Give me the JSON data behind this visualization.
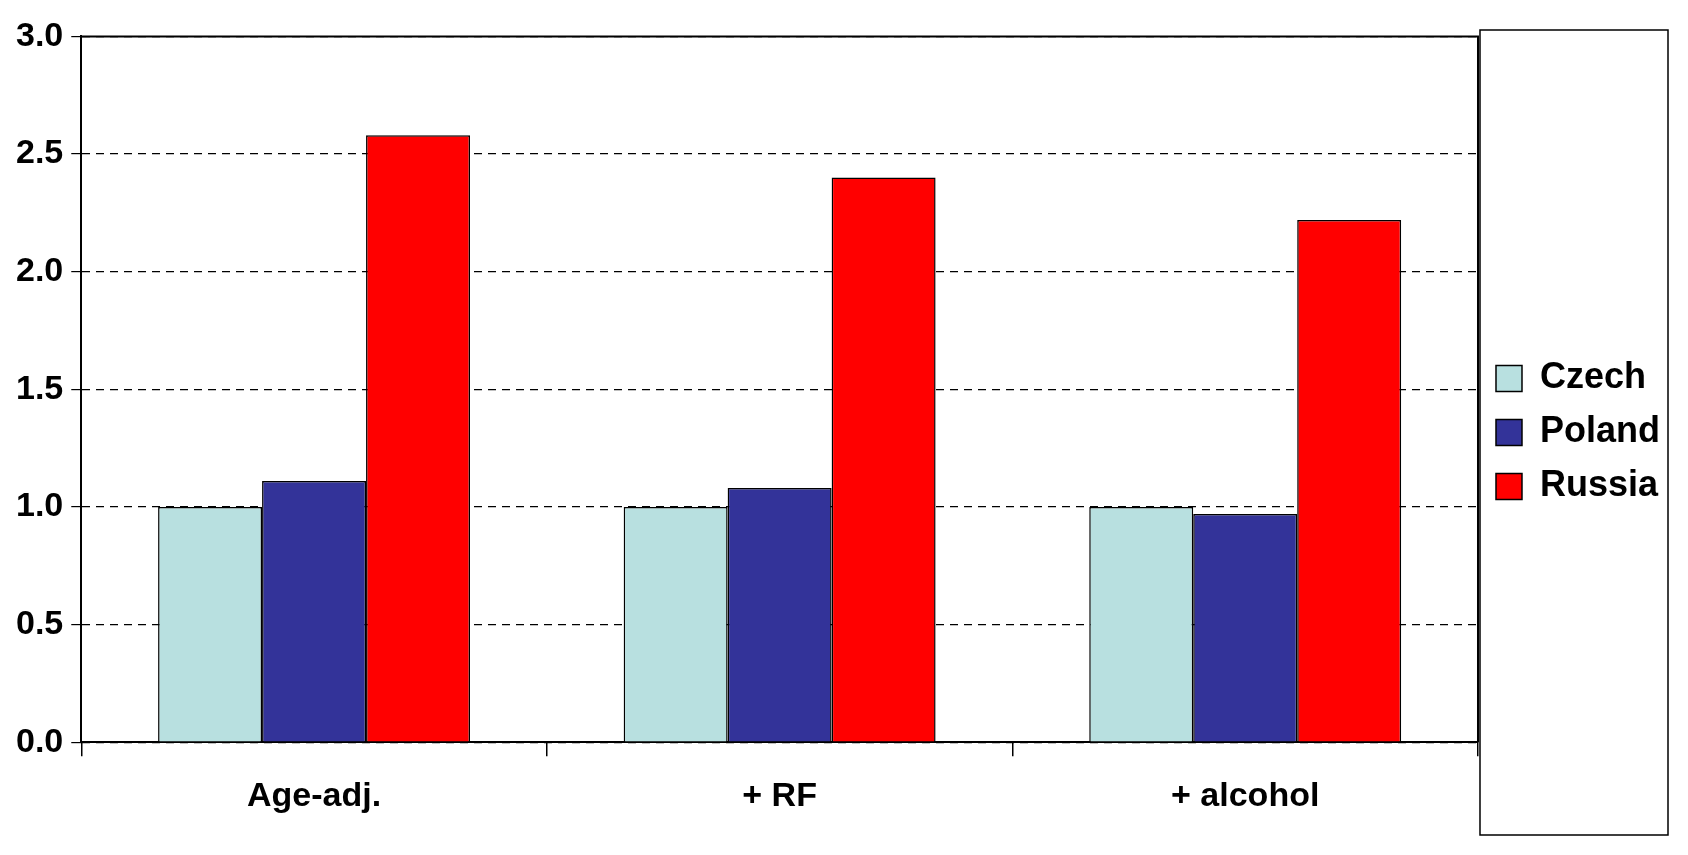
{
  "chart_data": {
    "type": "bar",
    "categories": [
      "Age-adj.",
      "+ RF",
      "+ alcohol"
    ],
    "series": [
      {
        "name": "Czech",
        "color": "#b8e0e0",
        "values": [
          1.0,
          1.0,
          1.0
        ]
      },
      {
        "name": "Poland",
        "color": "#333399",
        "values": [
          1.11,
          1.08,
          0.97
        ]
      },
      {
        "name": "Russia",
        "color": "#ff0000",
        "values": [
          2.58,
          2.4,
          2.22
        ]
      }
    ],
    "ylim": [
      0,
      3
    ],
    "yticks": [
      {
        "value": 0,
        "label": "0.0"
      },
      {
        "value": 0.5,
        "label": "0.5"
      },
      {
        "value": 1,
        "label": "1.0"
      },
      {
        "value": 1.5,
        "label": "1.5"
      },
      {
        "value": 2,
        "label": "2.0"
      },
      {
        "value": 2.5,
        "label": "2.5"
      },
      {
        "value": 3,
        "label": "3.0"
      }
    ],
    "grid": "y",
    "legend": "right"
  }
}
